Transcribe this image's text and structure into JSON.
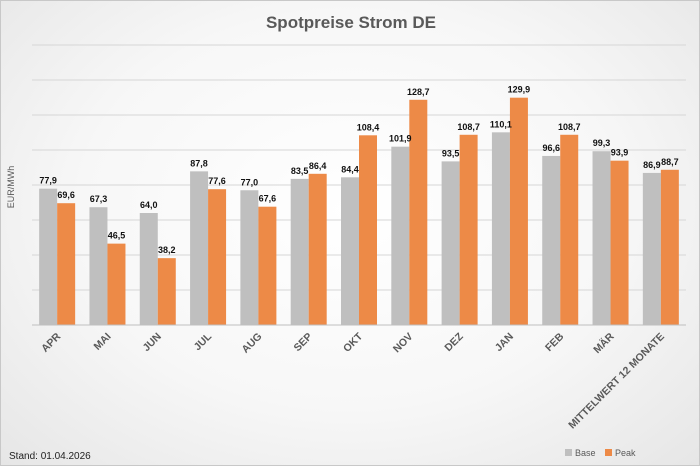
{
  "chart_data": {
    "type": "bar",
    "title": "Spotpreise Strom DE",
    "ylabel": "EUR/MWh",
    "xlabel": "",
    "ylim": [
      0,
      160
    ],
    "grid": true,
    "legend_position": "bottom-right",
    "categories": [
      "APR",
      "MAI",
      "JUN",
      "JUL",
      "AUG",
      "SEP",
      "OKT",
      "NOV",
      "DEZ",
      "JAN",
      "FEB",
      "MÄR",
      "MITTELWERT 12 MONATE"
    ],
    "series": [
      {
        "name": "Base",
        "color": "#bfbfbf",
        "values": [
          77.9,
          67.3,
          64.0,
          87.8,
          77.0,
          83.5,
          84.4,
          101.9,
          93.5,
          110.1,
          96.6,
          99.3,
          86.9
        ],
        "labels": [
          "77,9",
          "67,3",
          "64,0",
          "87,8",
          "77,0",
          "83,5",
          "84,4",
          "101,9",
          "93,5",
          "110,1",
          "96,6",
          "99,3",
          "86,9"
        ]
      },
      {
        "name": "Peak",
        "color": "#ed8a47",
        "values": [
          69.6,
          46.5,
          38.2,
          77.6,
          67.6,
          86.4,
          108.4,
          128.7,
          108.7,
          129.9,
          108.7,
          93.9,
          88.7
        ],
        "labels": [
          "69,6",
          "46,5",
          "38,2",
          "77,6",
          "67,6",
          "86,4",
          "108,4",
          "128,7",
          "108,7",
          "129,9",
          "108,7",
          "93,9",
          "88,7"
        ]
      }
    ]
  },
  "footer": {
    "stand": "Stand: 01.04.2026"
  }
}
